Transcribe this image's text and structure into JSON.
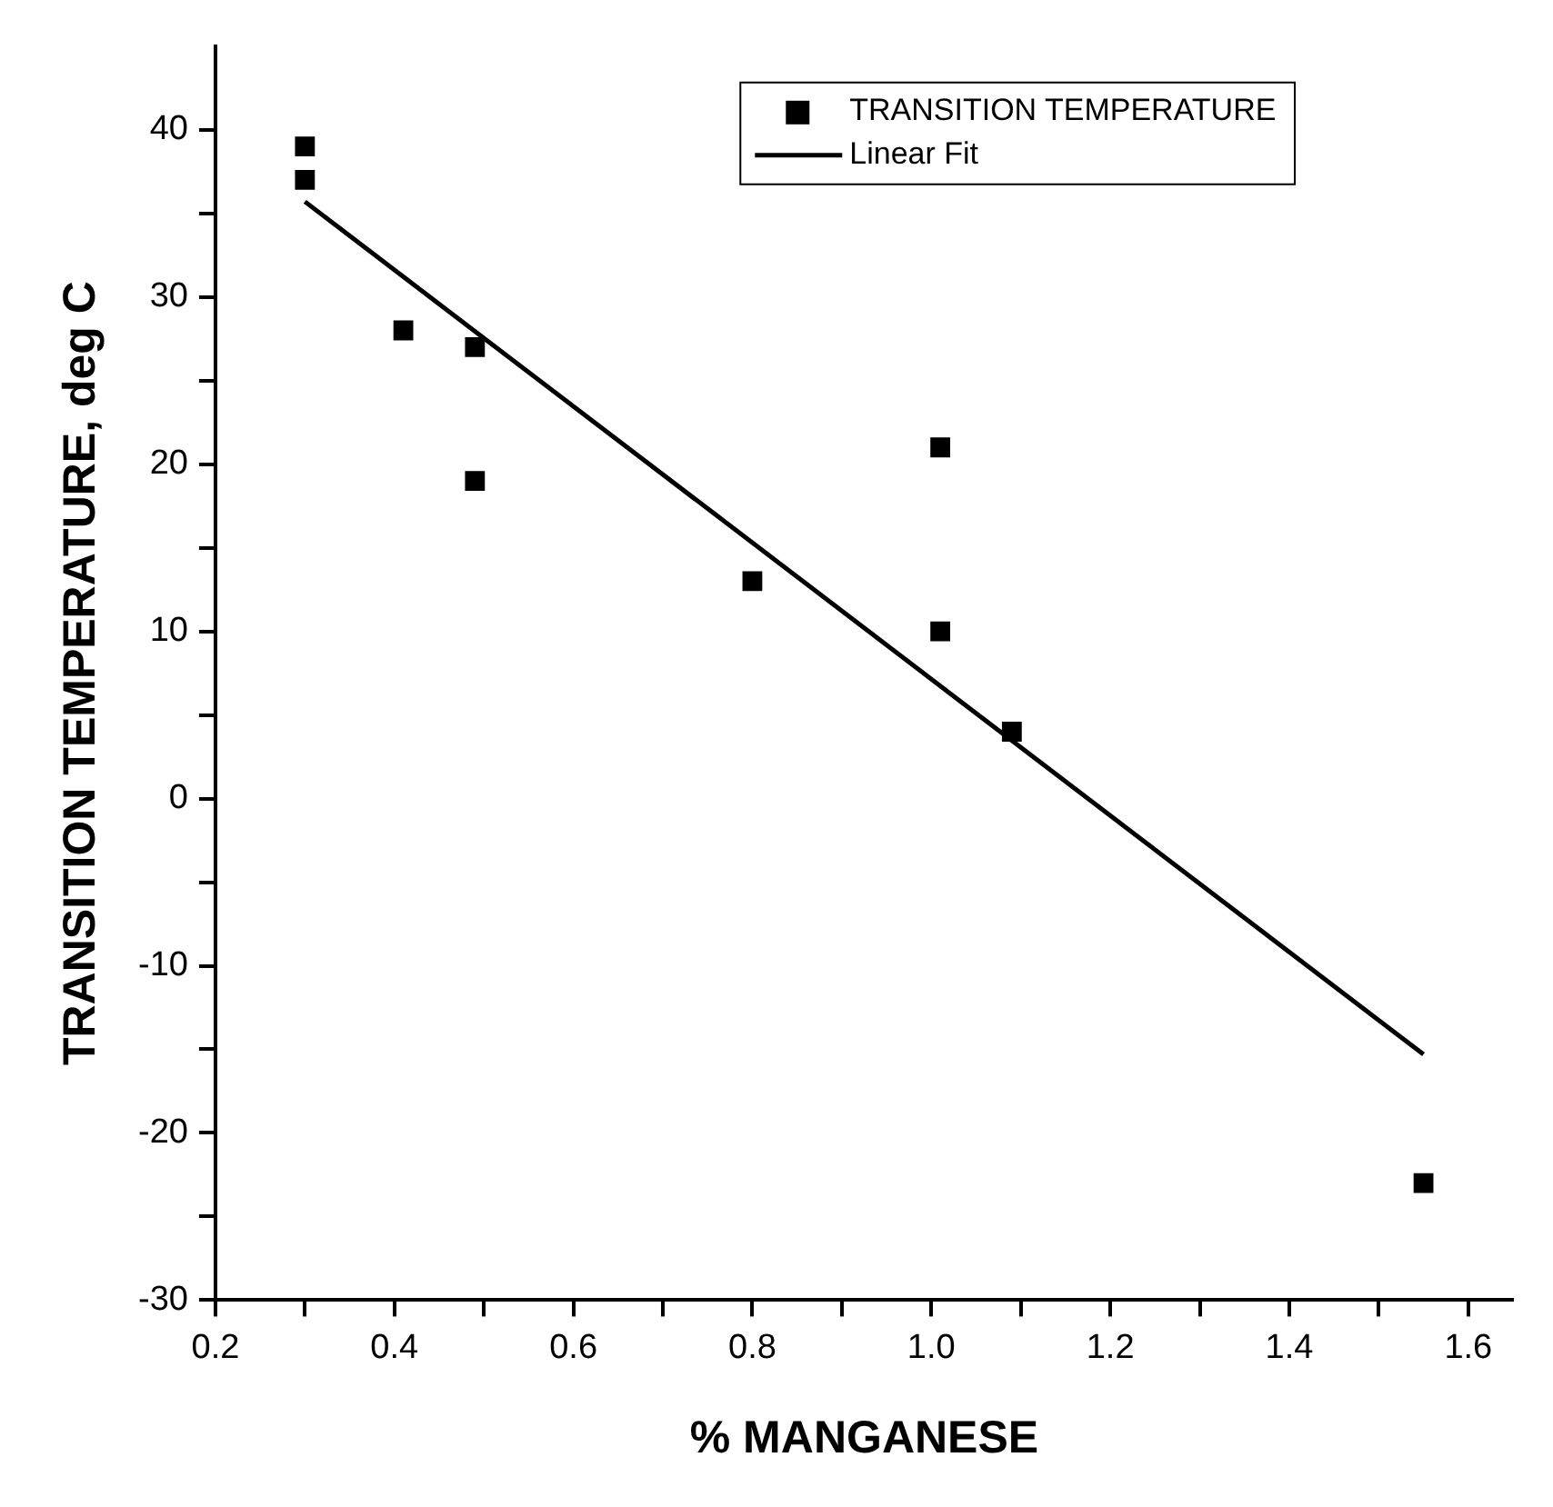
{
  "chart_data": {
    "type": "scatter",
    "xlabel": "% MANGANESE",
    "ylabel": "TRANSITION TEMPERATURE, deg C",
    "xlim": [
      0.2,
      1.65
    ],
    "ylim": [
      -30,
      45
    ],
    "xticks": [
      0.2,
      {
        "value": 0.3,
        "label": null
      },
      0.4,
      {
        "value": 0.5,
        "label": null
      },
      0.6,
      {
        "value": 0.7,
        "label": null
      },
      0.8,
      {
        "value": 0.9,
        "label": null
      },
      {
        "value": 1.0,
        "label": "1.0"
      },
      {
        "value": 1.1,
        "label": null
      },
      1.2,
      {
        "value": 1.3,
        "label": null
      },
      1.4,
      {
        "value": 1.5,
        "label": null
      },
      1.6
    ],
    "yticks": [
      -30,
      {
        "value": -25,
        "label": null
      },
      -20,
      {
        "value": -15,
        "label": null
      },
      -10,
      {
        "value": -5,
        "label": null
      },
      0,
      {
        "value": 5,
        "label": null
      },
      10,
      {
        "value": 15,
        "label": null
      },
      20,
      {
        "value": 25,
        "label": null
      },
      30,
      {
        "value": 35,
        "label": null
      },
      40
    ],
    "grid": false,
    "legend": "top right",
    "marker": "square",
    "series": [
      {
        "name": "TRANSITION TEMPERATURE",
        "type": "scatter",
        "color": "#000000",
        "x": [
          0.3,
          0.3,
          0.41,
          0.49,
          0.49,
          0.8,
          1.01,
          1.01,
          1.09,
          1.55
        ],
        "values": [
          39,
          37,
          28,
          27,
          19,
          13,
          21,
          10,
          4,
          -23
        ]
      },
      {
        "name": "Linear Fit",
        "type": "line",
        "color": "#000000",
        "x": [
          0.3,
          1.55
        ],
        "values": [
          35.7,
          -15.3
        ],
        "marker": "none",
        "line_style": "solid"
      }
    ]
  }
}
